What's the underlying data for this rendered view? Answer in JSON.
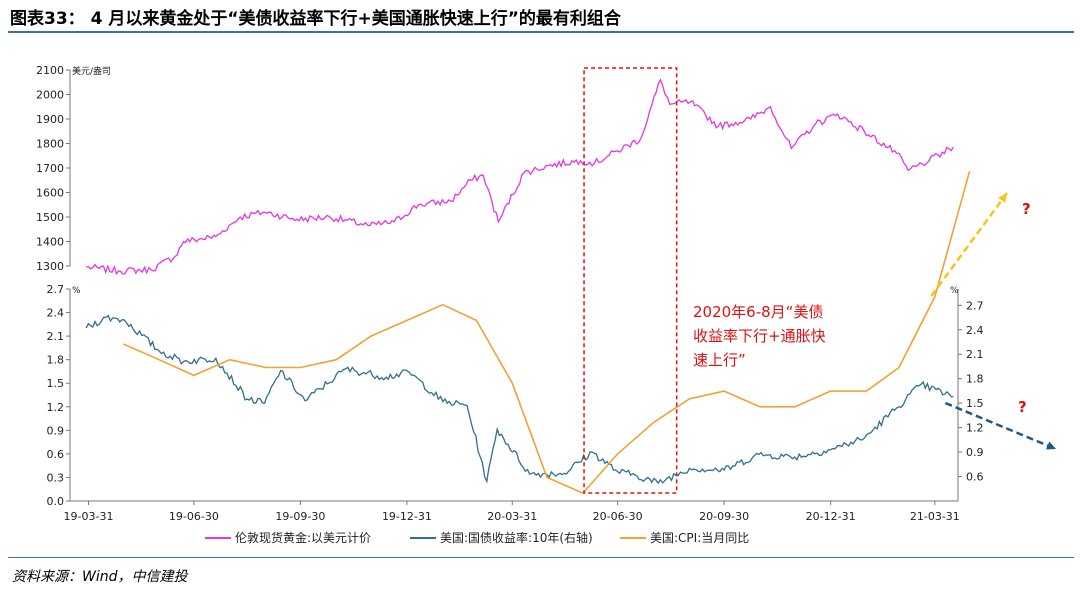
{
  "title": "图表33：  4 月以来黄金处于“美债收益率下行+美国通胀快速上行”的最有利组合",
  "source": "资料来源：Wind，中信建投",
  "colors": {
    "gold": "#e535e5",
    "yield": "#2f6f8f",
    "cpi": "#f5a030",
    "box": "#e01010",
    "annotation": "#e01010",
    "arrow_up": "#f5c518",
    "arrow_down": "#1f5a8a",
    "rule": "#3d6fa8"
  },
  "chart_data": [
    {
      "type": "line",
      "ylabel": "美元/盎司",
      "ylim": [
        1300,
        2100
      ],
      "yticks": [
        "2100",
        "2000",
        "1900",
        "1800",
        "1700",
        "1600",
        "1500",
        "1400",
        "1300"
      ],
      "series": [
        {
          "name": "伦敦现货黄金:以美元计价",
          "x": [
            "2019-03-29",
            "2019-04-26",
            "2019-05-24",
            "2019-06-14",
            "2019-06-21",
            "2019-07-19",
            "2019-08-09",
            "2019-08-30",
            "2019-09-27",
            "2019-10-25",
            "2019-11-29",
            "2019-12-20",
            "2020-01-10",
            "2020-02-07",
            "2020-02-24",
            "2020-03-06",
            "2020-03-19",
            "2020-04-10",
            "2020-05-01",
            "2020-05-29",
            "2020-06-10",
            "2020-06-30",
            "2020-07-20",
            "2020-08-06",
            "2020-08-14",
            "2020-09-01",
            "2020-09-25",
            "2020-10-23",
            "2020-11-09",
            "2020-11-27",
            "2020-12-18",
            "2021-01-06",
            "2021-01-29",
            "2021-02-26",
            "2021-03-08",
            "2021-03-26",
            "2021-04-16"
          ],
          "values": [
            1296,
            1280,
            1285,
            1340,
            1400,
            1420,
            1500,
            1520,
            1490,
            1500,
            1465,
            1480,
            1550,
            1565,
            1650,
            1670,
            1480,
            1680,
            1710,
            1730,
            1720,
            1770,
            1820,
            2060,
            1960,
            1970,
            1870,
            1900,
            1950,
            1780,
            1880,
            1920,
            1850,
            1760,
            1690,
            1730,
            1785
          ]
        }
      ]
    },
    {
      "type": "line",
      "ylabel": "%",
      "ylim": [
        0.0,
        2.7
      ],
      "yticks": [
        "2.7",
        "2.4",
        "2.1",
        "1.8",
        "1.5",
        "1.2",
        "0.9",
        "0.6",
        "0.3",
        "0.0"
      ],
      "y2label": "%",
      "y2lim": [
        0.3,
        2.9
      ],
      "y2ticks": [
        "2.7",
        "2.4",
        "2.1",
        "1.8",
        "1.5",
        "1.2",
        "0.9",
        "0.6"
      ],
      "xticks": [
        "19-03-31",
        "19-06-30",
        "19-09-30",
        "19-12-31",
        "20-03-31",
        "20-06-30",
        "20-09-30",
        "20-12-31",
        "21-03-31"
      ],
      "series": [
        {
          "name": "美国:国债收益率:10年(右轴)",
          "axis": "right",
          "x": [
            "2019-03-29",
            "2019-04-15",
            "2019-05-01",
            "2019-05-31",
            "2019-06-21",
            "2019-07-19",
            "2019-08-15",
            "2019-08-30",
            "2019-09-13",
            "2019-10-04",
            "2019-11-08",
            "2019-12-13",
            "2020-01-02",
            "2020-01-31",
            "2020-02-21",
            "2020-03-09",
            "2020-03-18",
            "2020-04-15",
            "2020-05-15",
            "2020-06-08",
            "2020-06-30",
            "2020-07-15",
            "2020-08-04",
            "2020-08-31",
            "2020-09-30",
            "2020-10-30",
            "2020-11-30",
            "2020-12-31",
            "2021-01-29",
            "2021-02-26",
            "2021-03-19",
            "2021-04-16"
          ],
          "values": [
            2.42,
            2.55,
            2.52,
            2.14,
            2.01,
            2.05,
            1.55,
            1.5,
            1.9,
            1.53,
            1.92,
            1.82,
            1.88,
            1.52,
            1.47,
            0.54,
            1.18,
            0.63,
            0.64,
            0.9,
            0.66,
            0.62,
            0.52,
            0.7,
            0.68,
            0.87,
            0.84,
            0.93,
            1.07,
            1.44,
            1.73,
            1.58
          ]
        },
        {
          "name": "美国:CPI:当月同比",
          "axis": "left",
          "x": [
            "2019-04-30",
            "2019-05-31",
            "2019-06-30",
            "2019-07-31",
            "2019-08-31",
            "2019-09-30",
            "2019-10-31",
            "2019-11-30",
            "2019-12-31",
            "2020-01-31",
            "2020-02-29",
            "2020-03-31",
            "2020-04-30",
            "2020-05-31",
            "2020-06-30",
            "2020-07-31",
            "2020-08-31",
            "2020-09-30",
            "2020-10-31",
            "2020-11-30",
            "2020-12-31",
            "2021-01-31",
            "2021-02-28",
            "2021-03-31",
            "2021-04-30"
          ],
          "values": [
            2.0,
            1.8,
            1.6,
            1.8,
            1.7,
            1.7,
            1.8,
            2.1,
            2.3,
            2.5,
            2.3,
            1.5,
            0.3,
            0.1,
            0.6,
            1.0,
            1.3,
            1.4,
            1.2,
            1.2,
            1.4,
            1.4,
            1.7,
            2.6,
            4.2
          ]
        }
      ]
    }
  ],
  "legend": {
    "gold": "伦敦现货黄金:以美元计价",
    "yield": "美国:国债收益率:10年(右轴)",
    "cpi": "美国:CPI:当月同比"
  },
  "annotation": {
    "line1": "2020年6-8月“美债",
    "line2": "收益率下行+通胀快",
    "line3": "速上行”",
    "q_upper": "?",
    "q_lower": "?"
  }
}
